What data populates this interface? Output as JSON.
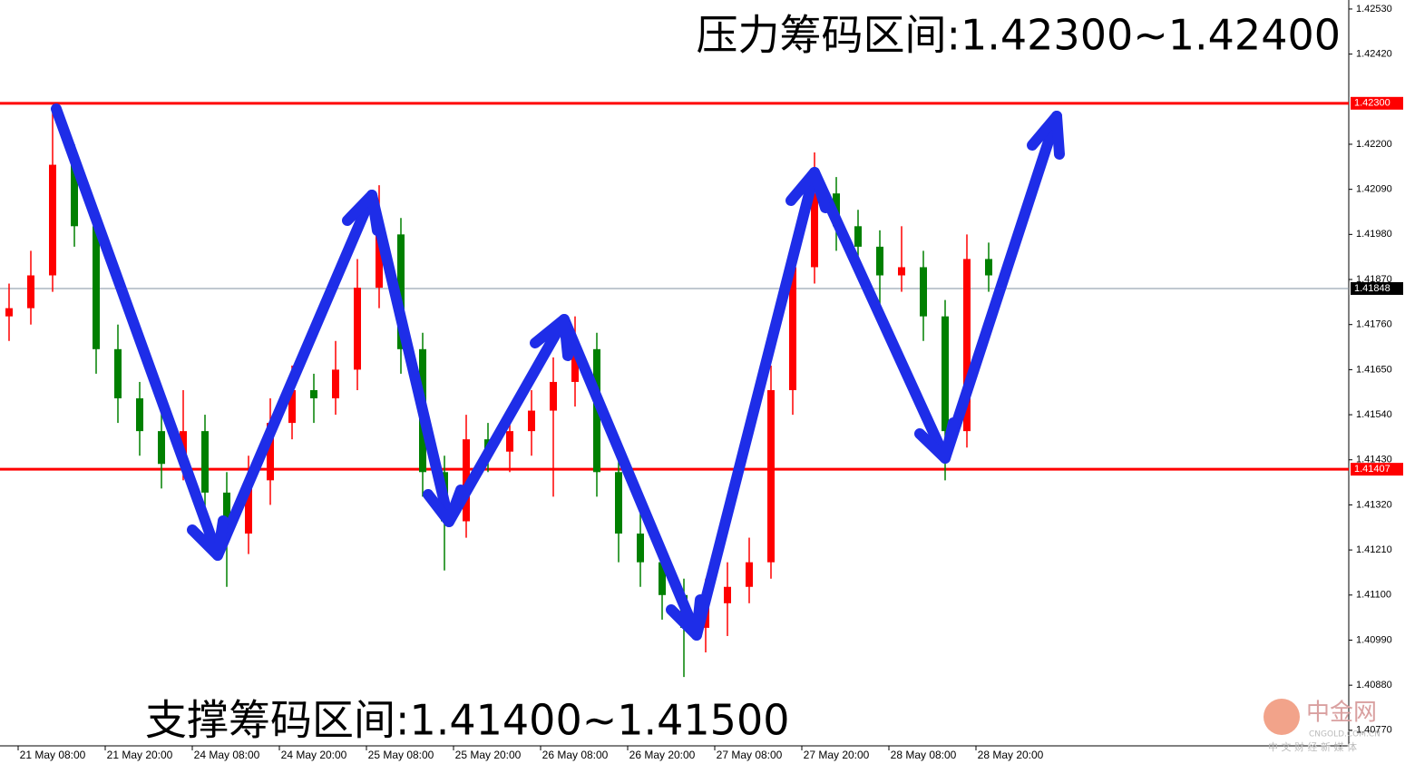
{
  "chart_data": {
    "type": "candlestick",
    "annotations": [
      "压力筹码区间:1.42300~1.42400",
      "支撑筹码区间:1.41400~1.41500"
    ],
    "xlabels": [
      "21 May 08:00",
      "21 May 20:00",
      "24 May 08:00",
      "24 May 20:00",
      "25 May 08:00",
      "25 May 20:00",
      "26 May 08:00",
      "26 May 20:00",
      "27 May 08:00",
      "27 May 20:00",
      "28 May 08:00",
      "28 May 20:00"
    ],
    "ohlc": [
      [
        1.4178,
        1.4186,
        1.4172,
        1.418
      ],
      [
        1.418,
        1.4194,
        1.4176,
        1.4188
      ],
      [
        1.4188,
        1.4228,
        1.4184,
        1.4215
      ],
      [
        1.4215,
        1.422,
        1.4195,
        1.42
      ],
      [
        1.42,
        1.4204,
        1.4164,
        1.417
      ],
      [
        1.417,
        1.4176,
        1.4152,
        1.4158
      ],
      [
        1.4158,
        1.4162,
        1.4144,
        1.415
      ],
      [
        1.415,
        1.4155,
        1.4136,
        1.4142
      ],
      [
        1.4142,
        1.416,
        1.4138,
        1.415
      ],
      [
        1.415,
        1.4154,
        1.4128,
        1.4135
      ],
      [
        1.4135,
        1.414,
        1.4112,
        1.4125
      ],
      [
        1.4125,
        1.4144,
        1.412,
        1.4138
      ],
      [
        1.4138,
        1.4158,
        1.4132,
        1.4152
      ],
      [
        1.4152,
        1.4166,
        1.4148,
        1.416
      ],
      [
        1.416,
        1.4164,
        1.4152,
        1.4158
      ],
      [
        1.4158,
        1.4172,
        1.4154,
        1.4165
      ],
      [
        1.4165,
        1.4192,
        1.416,
        1.4185
      ],
      [
        1.4185,
        1.421,
        1.418,
        1.4198
      ],
      [
        1.4198,
        1.4202,
        1.4164,
        1.417
      ],
      [
        1.417,
        1.4174,
        1.4134,
        1.414
      ],
      [
        1.414,
        1.4144,
        1.4116,
        1.4128
      ],
      [
        1.4128,
        1.4154,
        1.4124,
        1.4148
      ],
      [
        1.4148,
        1.4152,
        1.414,
        1.4145
      ],
      [
        1.4145,
        1.4156,
        1.414,
        1.415
      ],
      [
        1.415,
        1.416,
        1.4144,
        1.4155
      ],
      [
        1.4155,
        1.4168,
        1.4134,
        1.4162
      ],
      [
        1.4162,
        1.4178,
        1.4156,
        1.417
      ],
      [
        1.417,
        1.4174,
        1.4134,
        1.414
      ],
      [
        1.414,
        1.4144,
        1.4118,
        1.4125
      ],
      [
        1.4125,
        1.413,
        1.4112,
        1.4118
      ],
      [
        1.4118,
        1.4122,
        1.4104,
        1.411
      ],
      [
        1.411,
        1.4114,
        1.409,
        1.4102
      ],
      [
        1.4102,
        1.4114,
        1.4096,
        1.4108
      ],
      [
        1.4108,
        1.4118,
        1.41,
        1.4112
      ],
      [
        1.4112,
        1.4124,
        1.4108,
        1.4118
      ],
      [
        1.4118,
        1.4166,
        1.4114,
        1.416
      ],
      [
        1.416,
        1.4196,
        1.4154,
        1.419
      ],
      [
        1.419,
        1.4218,
        1.4186,
        1.4208
      ],
      [
        1.4208,
        1.4212,
        1.4194,
        1.42
      ],
      [
        1.42,
        1.4204,
        1.4188,
        1.4195
      ],
      [
        1.4195,
        1.4199,
        1.418,
        1.4188
      ],
      [
        1.4188,
        1.42,
        1.4184,
        1.419
      ],
      [
        1.419,
        1.4194,
        1.4172,
        1.4178
      ],
      [
        1.4178,
        1.4182,
        1.4138,
        1.415
      ],
      [
        1.415,
        1.4198,
        1.4146,
        1.4192
      ],
      [
        1.4192,
        1.4196,
        1.4184,
        1.4188
      ]
    ],
    "up_color": "#ff0000",
    "down_color": "#008000",
    "ylim": [
      1.40732,
      1.42552
    ],
    "yticks": [
      {
        "value": 1.4253,
        "label": "1.42530"
      },
      {
        "value": 1.4242,
        "label": "1.42420"
      },
      {
        "value": 1.422,
        "label": "1.42200"
      },
      {
        "value": 1.4209,
        "label": "1.42090"
      },
      {
        "value": 1.4198,
        "label": "1.41980"
      },
      {
        "value": 1.4187,
        "label": "1.41870"
      },
      {
        "value": 1.4176,
        "label": "1.41760"
      },
      {
        "value": 1.4165,
        "label": "1.41650"
      },
      {
        "value": 1.4154,
        "label": "1.41540"
      },
      {
        "value": 1.4143,
        "label": "1.41430"
      },
      {
        "value": 1.4132,
        "label": "1.41320"
      },
      {
        "value": 1.4121,
        "label": "1.41210"
      },
      {
        "value": 1.411,
        "label": "1.41100"
      },
      {
        "value": 1.4099,
        "label": "1.40990"
      },
      {
        "value": 1.4088,
        "label": "1.40880"
      },
      {
        "value": 1.4077,
        "label": "1.40770"
      }
    ],
    "hlines": [
      {
        "value": 1.423,
        "label": "1.42300",
        "color": "#ff0000"
      },
      {
        "value": 1.41848,
        "label": "1.41848",
        "color": "#000000"
      },
      {
        "value": 1.41407,
        "label": "1.41407",
        "color": "#ff0000"
      }
    ],
    "watermark": {
      "name": "中金网",
      "site": "CNGOLD.COM.CN",
      "slogan": "中 文 财 经 新 媒 体"
    }
  }
}
